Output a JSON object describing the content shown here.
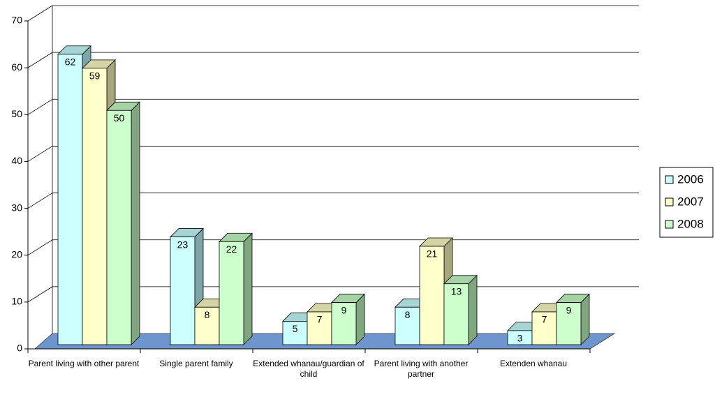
{
  "chart_data": {
    "type": "bar3d",
    "categories": [
      "Parent living with other parent",
      "Single parent family",
      "Extended whanau/guardian of child",
      "Parent living with another partner",
      "Extenden whanau"
    ],
    "series": [
      {
        "name": "2006",
        "color": "#ccffff",
        "values": [
          62,
          23,
          5,
          8,
          3
        ]
      },
      {
        "name": "2007",
        "color": "#ffffcc",
        "values": [
          59,
          8,
          7,
          21,
          7
        ]
      },
      {
        "name": "2008",
        "color": "#ccffcc",
        "values": [
          50,
          22,
          9,
          13,
          9
        ]
      }
    ],
    "ylim": [
      0,
      70
    ],
    "yticks": [
      0,
      10,
      20,
      30,
      40,
      50,
      60,
      70
    ],
    "grid": true,
    "legend": "right"
  }
}
